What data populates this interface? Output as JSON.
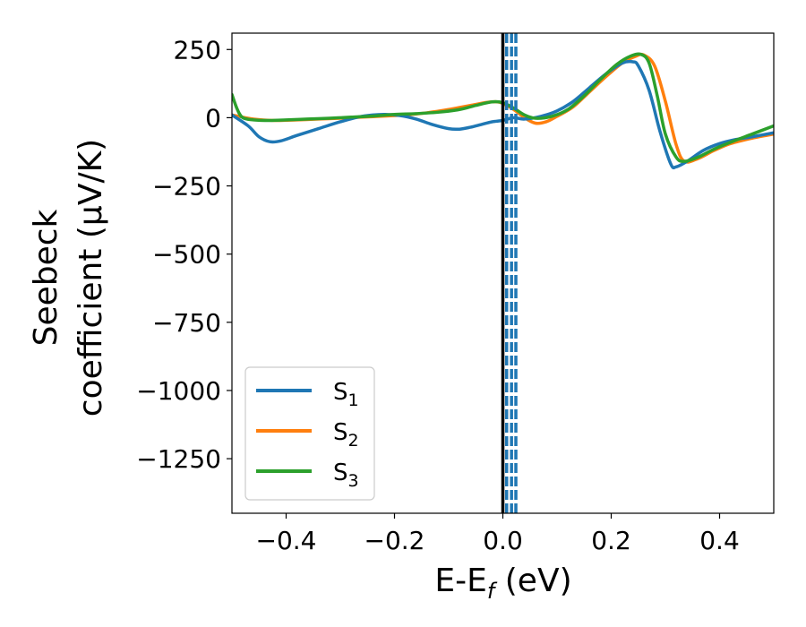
{
  "chart_data": {
    "type": "line",
    "xlabel": "E-E_f (eV)",
    "ylabel_line1": "Seebeck",
    "ylabel_line2": "coefficient  (μV/K)",
    "xlim": [
      -0.5,
      0.5
    ],
    "ylim": [
      -1450,
      310
    ],
    "x_ticks": [
      -0.4,
      -0.2,
      0.0,
      0.2,
      0.4
    ],
    "x_tick_labels": [
      "−0.4",
      "−0.2",
      "0.0",
      "0.2",
      "0.4"
    ],
    "y_ticks": [
      250,
      0,
      -250,
      -500,
      -750,
      -1000,
      -1250
    ],
    "y_tick_labels": [
      "250",
      "0",
      "−250",
      "−500",
      "−750",
      "−1000",
      "−1250"
    ],
    "grid": false,
    "legend_position": "lower-left",
    "fermi_line": {
      "x": 0.0,
      "color": "#000000",
      "style": "solid"
    },
    "dashed_lines": {
      "x": [
        0.007,
        0.016,
        0.024
      ],
      "color": "#1f77b4",
      "style": "dashed"
    },
    "series": [
      {
        "name": "S1",
        "label_base": "S",
        "label_sub": "1",
        "color": "#1f77b4",
        "x": [
          -0.5,
          -0.47,
          -0.45,
          -0.43,
          -0.41,
          -0.38,
          -0.34,
          -0.3,
          -0.26,
          -0.22,
          -0.19,
          -0.16,
          -0.13,
          -0.1,
          -0.08,
          -0.06,
          -0.04,
          -0.02,
          0.0,
          0.02,
          0.04,
          0.07,
          0.1,
          0.13,
          0.16,
          0.19,
          0.22,
          0.24,
          0.25,
          0.27,
          0.29,
          0.31,
          0.32,
          0.34,
          0.37,
          0.4,
          0.43,
          0.46,
          0.5
        ],
        "y": [
          10,
          -30,
          -70,
          -88,
          -85,
          -65,
          -40,
          -15,
          5,
          12,
          8,
          -5,
          -25,
          -40,
          -42,
          -35,
          -25,
          -15,
          -10,
          0,
          -5,
          5,
          25,
          60,
          110,
          160,
          200,
          205,
          190,
          100,
          -50,
          -170,
          -180,
          -160,
          -120,
          -95,
          -80,
          -70,
          -55
        ]
      },
      {
        "name": "S2",
        "label_base": "S",
        "label_sub": "2",
        "color": "#ff7f0e",
        "x": [
          -0.5,
          -0.46,
          -0.42,
          -0.38,
          -0.34,
          -0.3,
          -0.26,
          -0.22,
          -0.18,
          -0.14,
          -0.1,
          -0.06,
          -0.03,
          -0.01,
          0.0,
          0.02,
          0.04,
          0.06,
          0.08,
          0.1,
          0.13,
          0.16,
          0.19,
          0.22,
          0.245,
          0.26,
          0.28,
          0.3,
          0.32,
          0.335,
          0.36,
          0.39,
          0.42,
          0.46,
          0.5
        ],
        "y": [
          10,
          -5,
          -10,
          -8,
          -5,
          -2,
          2,
          6,
          10,
          18,
          30,
          45,
          56,
          58,
          52,
          30,
          0,
          -20,
          -15,
          5,
          40,
          95,
          150,
          200,
          225,
          230,
          190,
          60,
          -100,
          -160,
          -150,
          -120,
          -95,
          -75,
          -60
        ]
      },
      {
        "name": "S3",
        "label_base": "S",
        "label_sub": "3",
        "color": "#2ca02c",
        "x": [
          -0.5,
          -0.49,
          -0.48,
          -0.46,
          -0.43,
          -0.4,
          -0.36,
          -0.32,
          -0.28,
          -0.24,
          -0.2,
          -0.16,
          -0.12,
          -0.08,
          -0.05,
          -0.02,
          0.0,
          0.02,
          0.04,
          0.06,
          0.09,
          0.12,
          0.15,
          0.18,
          0.21,
          0.235,
          0.255,
          0.27,
          0.285,
          0.3,
          0.32,
          0.335,
          0.36,
          0.39,
          0.42,
          0.46,
          0.5
        ],
        "y": [
          85,
          30,
          0,
          -8,
          -10,
          -8,
          -5,
          -2,
          2,
          6,
          12,
          15,
          20,
          30,
          45,
          58,
          55,
          35,
          10,
          -2,
          5,
          30,
          80,
          140,
          195,
          225,
          232,
          200,
          80,
          -60,
          -145,
          -160,
          -145,
          -115,
          -90,
          -60,
          -30
        ]
      }
    ]
  }
}
